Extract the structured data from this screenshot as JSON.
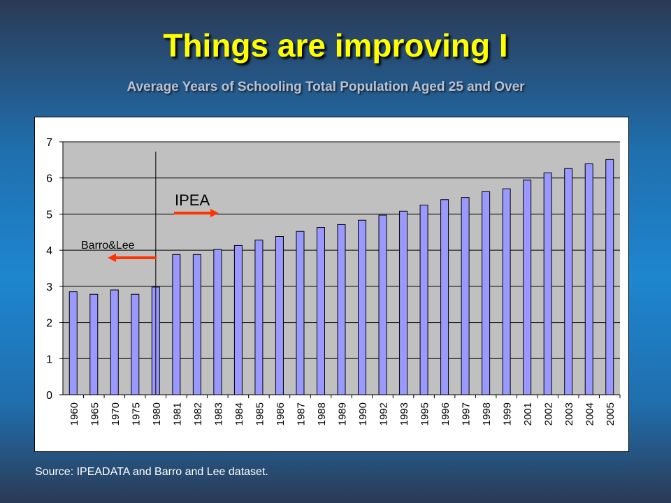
{
  "slide": {
    "title": "Things are improving I",
    "subtitle": "Average Years of Schooling Total Population Aged 25 and Over",
    "source": "Source: IPEADATA and Barro and Lee dataset."
  },
  "colors": {
    "title": "#ffff00",
    "subtitle": "#b7c3d4",
    "bar_fill": "#9999ff",
    "plot_background": "#c0c0c0",
    "arrow": "#ff3300"
  },
  "chart_data": {
    "type": "bar",
    "title": "",
    "xlabel": "",
    "ylabel": "",
    "ylim": [
      0,
      7
    ],
    "yticks": [
      0,
      1,
      2,
      3,
      4,
      5,
      6,
      7
    ],
    "grid": true,
    "legend": "none",
    "categories": [
      "1960",
      "1965",
      "1970",
      "1975",
      "1980",
      "1981",
      "1982",
      "1983",
      "1984",
      "1985",
      "1986",
      "1987",
      "1988",
      "1989",
      "1990",
      "1992",
      "1993",
      "1995",
      "1996",
      "1997",
      "1998",
      "1999",
      "2001",
      "2002",
      "2003",
      "2004",
      "2005"
    ],
    "series": [
      {
        "values": [
          2.85,
          2.78,
          2.9,
          2.78,
          2.98,
          3.88,
          3.88,
          4.02,
          4.13,
          4.28,
          4.38,
          4.52,
          4.63,
          4.71,
          4.83,
          4.97,
          5.08,
          5.25,
          5.4,
          5.46,
          5.62,
          5.7,
          5.94,
          6.14,
          6.26,
          6.39,
          6.51
        ]
      }
    ],
    "annotations": [
      {
        "text": "Barro&Lee",
        "arrow_direction": "left"
      },
      {
        "text": "IPEA",
        "arrow_direction": "right"
      }
    ]
  }
}
